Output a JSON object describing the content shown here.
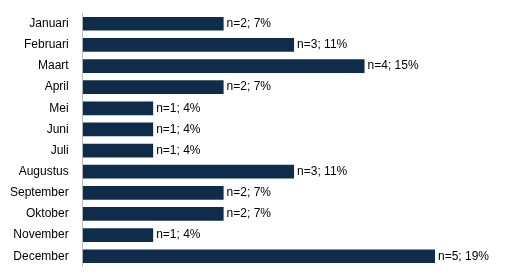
{
  "chart_data": {
    "type": "bar",
    "orientation": "horizontal",
    "categories": [
      "Januari",
      "Februari",
      "Maart",
      "April",
      "Mei",
      "Juni",
      "Juli",
      "Augustus",
      "September",
      "Oktober",
      "November",
      "December"
    ],
    "values": [
      2,
      3,
      4,
      2,
      1,
      1,
      1,
      3,
      2,
      2,
      1,
      5
    ],
    "value_labels": [
      "n=2; 7%",
      "n=3; 11%",
      "n=4; 15%",
      "n=2; 7%",
      "n=1; 4%",
      "n=1; 4%",
      "n=1; 4%",
      "n=3; 11%",
      "n=2; 7%",
      "n=2; 7%",
      "n=1; 4%",
      "n=5; 19%"
    ],
    "color": "#0f2d4a",
    "data_labels": true,
    "tick_labels": "y",
    "grid": false
  }
}
